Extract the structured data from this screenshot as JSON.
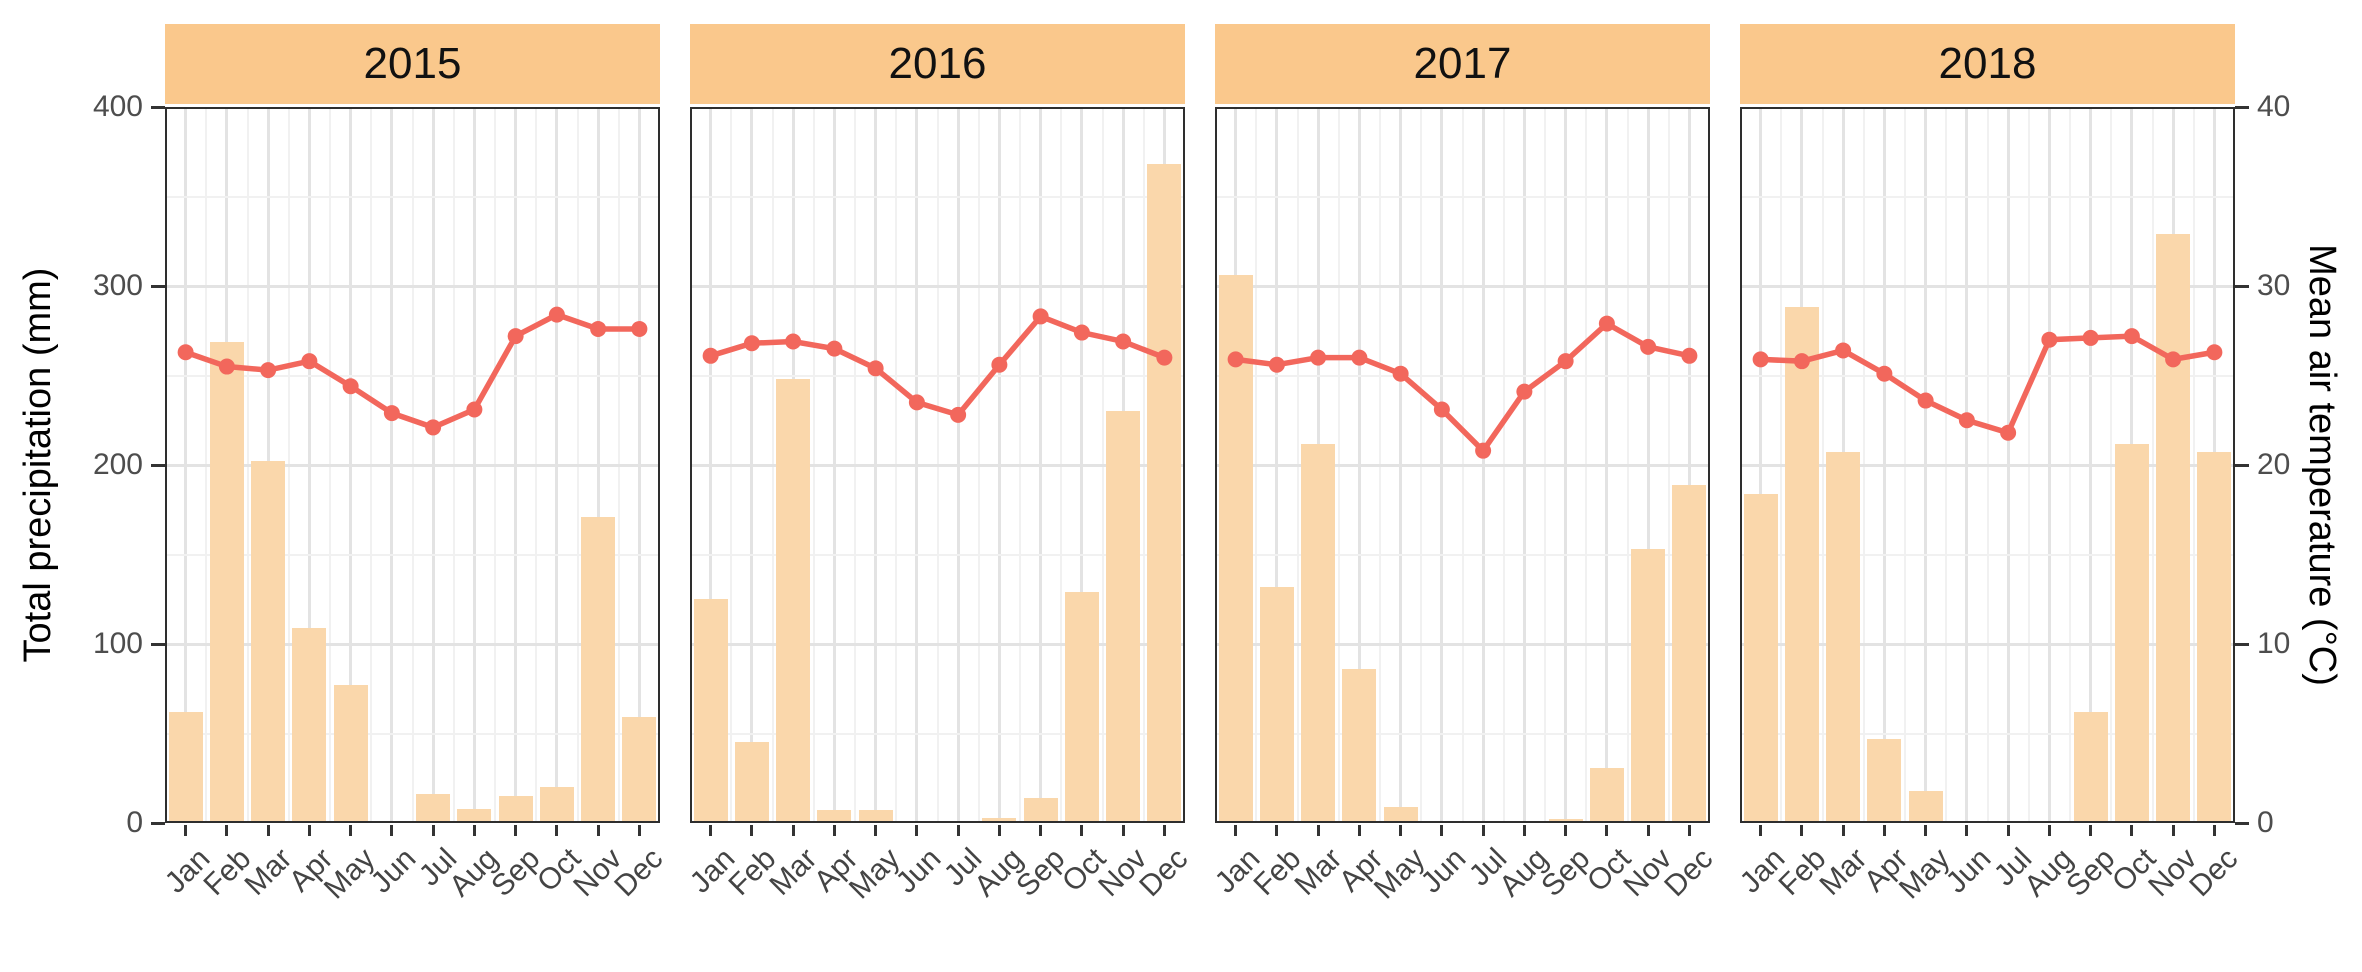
{
  "chart_data": {
    "type": "bar+line",
    "title": "",
    "facet_variable": "year",
    "months": [
      "Jan",
      "Feb",
      "Mar",
      "Apr",
      "May",
      "Jun",
      "Jul",
      "Aug",
      "Sep",
      "Oct",
      "Nov",
      "Dec"
    ],
    "facets": [
      {
        "year": "2015",
        "precip_mm": [
          62,
          269,
          202,
          109,
          77,
          0,
          16,
          8,
          15,
          20,
          171,
          59
        ],
        "temp_c": [
          26.3,
          25.5,
          25.3,
          25.8,
          24.4,
          22.9,
          22.1,
          23.1,
          27.2,
          28.4,
          27.6,
          27.6
        ]
      },
      {
        "year": "2016",
        "precip_mm": [
          125,
          45,
          248,
          7,
          7,
          0,
          0,
          3,
          14,
          129,
          230,
          368
        ],
        "temp_c": [
          26.1,
          26.8,
          26.9,
          26.5,
          25.4,
          23.5,
          22.8,
          25.6,
          28.3,
          27.4,
          26.9,
          26.0
        ]
      },
      {
        "year": "2017",
        "precip_mm": [
          306,
          132,
          212,
          86,
          9,
          0,
          0,
          0,
          2,
          31,
          153,
          189
        ],
        "temp_c": [
          25.9,
          25.6,
          26.0,
          26.0,
          25.1,
          23.1,
          20.8,
          24.1,
          25.8,
          27.9,
          26.6,
          26.1
        ]
      },
      {
        "year": "2018",
        "precip_mm": [
          184,
          288,
          207,
          47,
          18,
          0,
          0,
          0,
          62,
          212,
          329,
          207
        ],
        "temp_c": [
          25.9,
          25.8,
          26.4,
          25.1,
          23.6,
          22.5,
          21.8,
          27.0,
          27.1,
          27.2,
          25.9,
          26.3
        ]
      }
    ],
    "left_axis": {
      "label": "Total precipitation (mm)",
      "ticks": [
        400,
        300,
        200,
        100,
        0
      ],
      "range": [
        0,
        400
      ]
    },
    "right_axis": {
      "label": "Mean air temperature (°C)",
      "ticks": [
        40,
        30,
        20,
        10,
        0
      ],
      "range": [
        0,
        40
      ]
    },
    "grid": {
      "major_y_mm": [
        300,
        200,
        100
      ],
      "minor_y_mm": [
        350,
        250,
        150,
        50
      ],
      "vertical": "per-month"
    },
    "legend": "none",
    "colors": {
      "bar": "#FAD7AB",
      "strip": "#FAC88C",
      "line": "#F2675C",
      "grid_major": "#E3E3E3",
      "grid_minor": "#F1F1F1",
      "panel_border": "#2E2E2E",
      "axis_text": "#4D4D4D",
      "strip_text": "#111111"
    }
  }
}
